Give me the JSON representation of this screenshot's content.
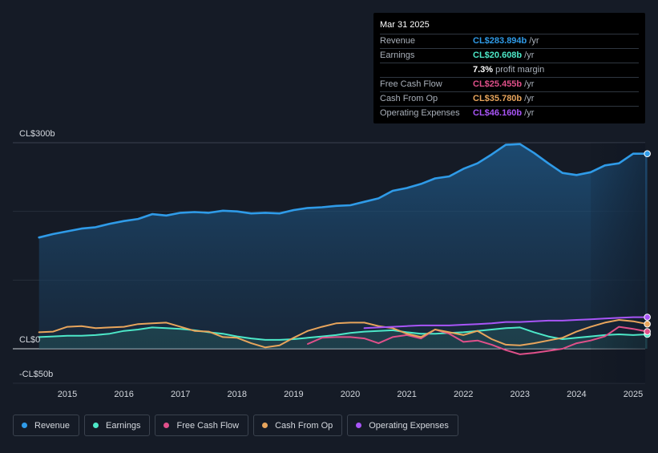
{
  "chart_data": {
    "type": "area",
    "y_axis": {
      "labels": {
        "top": "CL$300b",
        "zero": "CL$0",
        "bottom": "-CL$50b"
      },
      "ylim": [
        -50,
        300
      ]
    },
    "x_ticks": [
      "2015",
      "2016",
      "2017",
      "2018",
      "2019",
      "2020",
      "2021",
      "2022",
      "2023",
      "2024",
      "2025"
    ],
    "x_range": [
      2014.5,
      2025.25
    ],
    "forecast_start": 2024.25,
    "series": [
      {
        "name": "Revenue",
        "color": "#2f9be8",
        "fill": true,
        "points": [
          [
            2014.5,
            162
          ],
          [
            2014.75,
            167
          ],
          [
            2015.0,
            171
          ],
          [
            2015.25,
            175
          ],
          [
            2015.5,
            177
          ],
          [
            2015.75,
            182
          ],
          [
            2016.0,
            186
          ],
          [
            2016.25,
            189
          ],
          [
            2016.5,
            196
          ],
          [
            2016.75,
            194
          ],
          [
            2017.0,
            198
          ],
          [
            2017.25,
            199
          ],
          [
            2017.5,
            198
          ],
          [
            2017.75,
            201
          ],
          [
            2018.0,
            200
          ],
          [
            2018.25,
            197
          ],
          [
            2018.5,
            198
          ],
          [
            2018.75,
            197
          ],
          [
            2019.0,
            202
          ],
          [
            2019.25,
            205
          ],
          [
            2019.5,
            206
          ],
          [
            2019.75,
            208
          ],
          [
            2020.0,
            209
          ],
          [
            2020.25,
            214
          ],
          [
            2020.5,
            219
          ],
          [
            2020.75,
            230
          ],
          [
            2021.0,
            234
          ],
          [
            2021.25,
            240
          ],
          [
            2021.5,
            248
          ],
          [
            2021.75,
            251
          ],
          [
            2022.0,
            262
          ],
          [
            2022.25,
            270
          ],
          [
            2022.5,
            283
          ],
          [
            2022.75,
            297
          ],
          [
            2023.0,
            298
          ],
          [
            2023.25,
            285
          ],
          [
            2023.5,
            270
          ],
          [
            2023.75,
            256
          ],
          [
            2024.0,
            253
          ],
          [
            2024.25,
            257
          ],
          [
            2024.5,
            267
          ],
          [
            2024.75,
            270
          ],
          [
            2025.0,
            284
          ],
          [
            2025.25,
            284
          ]
        ]
      },
      {
        "name": "Earnings",
        "color": "#4de8c8",
        "fill": true,
        "points": [
          [
            2014.5,
            17
          ],
          [
            2014.75,
            18
          ],
          [
            2015.0,
            19
          ],
          [
            2015.25,
            19
          ],
          [
            2015.5,
            20
          ],
          [
            2015.75,
            22
          ],
          [
            2016.0,
            26
          ],
          [
            2016.25,
            28
          ],
          [
            2016.5,
            31
          ],
          [
            2016.75,
            30
          ],
          [
            2017.0,
            29
          ],
          [
            2017.25,
            27
          ],
          [
            2017.5,
            24
          ],
          [
            2017.75,
            22
          ],
          [
            2018.0,
            18
          ],
          [
            2018.25,
            15
          ],
          [
            2018.5,
            13
          ],
          [
            2018.75,
            13
          ],
          [
            2019.0,
            14
          ],
          [
            2019.25,
            16
          ],
          [
            2019.5,
            18
          ],
          [
            2019.75,
            20
          ],
          [
            2020.0,
            23
          ],
          [
            2020.25,
            25
          ],
          [
            2020.5,
            26
          ],
          [
            2020.75,
            27
          ],
          [
            2021.0,
            24
          ],
          [
            2021.25,
            22
          ],
          [
            2021.5,
            22
          ],
          [
            2021.75,
            23
          ],
          [
            2022.0,
            24
          ],
          [
            2022.25,
            26
          ],
          [
            2022.5,
            28
          ],
          [
            2022.75,
            30
          ],
          [
            2023.0,
            31
          ],
          [
            2023.25,
            24
          ],
          [
            2023.5,
            18
          ],
          [
            2023.75,
            14
          ],
          [
            2024.0,
            16
          ],
          [
            2024.25,
            18
          ],
          [
            2024.5,
            20
          ],
          [
            2024.75,
            21
          ],
          [
            2025.0,
            20
          ],
          [
            2025.25,
            21
          ]
        ]
      },
      {
        "name": "Free Cash Flow",
        "color": "#e0508a",
        "fill": false,
        "points": [
          [
            2019.25,
            7
          ],
          [
            2019.5,
            16
          ],
          [
            2019.75,
            17
          ],
          [
            2020.0,
            17
          ],
          [
            2020.25,
            15
          ],
          [
            2020.5,
            8
          ],
          [
            2020.75,
            17
          ],
          [
            2021.0,
            20
          ],
          [
            2021.25,
            15
          ],
          [
            2021.5,
            28
          ],
          [
            2021.75,
            22
          ],
          [
            2022.0,
            10
          ],
          [
            2022.25,
            12
          ],
          [
            2022.5,
            6
          ],
          [
            2022.75,
            -2
          ],
          [
            2023.0,
            -8
          ],
          [
            2023.25,
            -6
          ],
          [
            2023.5,
            -3
          ],
          [
            2023.75,
            0
          ],
          [
            2024.0,
            8
          ],
          [
            2024.25,
            12
          ],
          [
            2024.5,
            18
          ],
          [
            2024.75,
            32
          ],
          [
            2025.0,
            29
          ],
          [
            2025.25,
            25
          ]
        ]
      },
      {
        "name": "Cash From Op",
        "color": "#e8a55c",
        "fill": false,
        "points": [
          [
            2014.5,
            24
          ],
          [
            2014.75,
            25
          ],
          [
            2015.0,
            32
          ],
          [
            2015.25,
            33
          ],
          [
            2015.5,
            30
          ],
          [
            2015.75,
            31
          ],
          [
            2016.0,
            32
          ],
          [
            2016.25,
            36
          ],
          [
            2016.5,
            37
          ],
          [
            2016.75,
            38
          ],
          [
            2017.0,
            32
          ],
          [
            2017.25,
            26
          ],
          [
            2017.5,
            25
          ],
          [
            2017.75,
            17
          ],
          [
            2018.0,
            16
          ],
          [
            2018.25,
            8
          ],
          [
            2018.5,
            2
          ],
          [
            2018.75,
            5
          ],
          [
            2019.0,
            16
          ],
          [
            2019.25,
            26
          ],
          [
            2019.5,
            32
          ],
          [
            2019.75,
            37
          ],
          [
            2020.0,
            38
          ],
          [
            2020.25,
            38
          ],
          [
            2020.5,
            33
          ],
          [
            2020.75,
            30
          ],
          [
            2021.0,
            22
          ],
          [
            2021.25,
            17
          ],
          [
            2021.5,
            28
          ],
          [
            2021.75,
            24
          ],
          [
            2022.0,
            20
          ],
          [
            2022.25,
            26
          ],
          [
            2022.5,
            14
          ],
          [
            2022.75,
            6
          ],
          [
            2023.0,
            5
          ],
          [
            2023.25,
            8
          ],
          [
            2023.5,
            12
          ],
          [
            2023.75,
            16
          ],
          [
            2024.0,
            25
          ],
          [
            2024.25,
            32
          ],
          [
            2024.5,
            38
          ],
          [
            2024.75,
            42
          ],
          [
            2025.0,
            40
          ],
          [
            2025.25,
            36
          ]
        ]
      },
      {
        "name": "Operating Expenses",
        "color": "#a855f7",
        "fill": false,
        "points": [
          [
            2020.25,
            30
          ],
          [
            2020.5,
            31
          ],
          [
            2020.75,
            32
          ],
          [
            2021.0,
            33
          ],
          [
            2021.25,
            34
          ],
          [
            2021.5,
            34
          ],
          [
            2021.75,
            34
          ],
          [
            2022.0,
            35
          ],
          [
            2022.25,
            36
          ],
          [
            2022.5,
            37
          ],
          [
            2022.75,
            39
          ],
          [
            2023.0,
            39
          ],
          [
            2023.25,
            40
          ],
          [
            2023.5,
            41
          ],
          [
            2023.75,
            41
          ],
          [
            2024.0,
            42
          ],
          [
            2024.25,
            43
          ],
          [
            2024.5,
            44
          ],
          [
            2024.75,
            45
          ],
          [
            2025.0,
            46
          ],
          [
            2025.25,
            46
          ]
        ]
      }
    ]
  },
  "tooltip": {
    "date": "Mar 31 2025",
    "rows": [
      {
        "label": "Revenue",
        "value": "CL$283.894b",
        "unit": "/yr",
        "color": "#2f9be8"
      },
      {
        "label": "Earnings",
        "value": "CL$20.608b",
        "unit": "/yr",
        "color": "#4de8c8"
      },
      {
        "label": "",
        "value": "7.3%",
        "unit": "profit margin",
        "color": "#ffffff"
      },
      {
        "label": "Free Cash Flow",
        "value": "CL$25.455b",
        "unit": "/yr",
        "color": "#e0508a"
      },
      {
        "label": "Cash From Op",
        "value": "CL$35.780b",
        "unit": "/yr",
        "color": "#e8a55c"
      },
      {
        "label": "Operating Expenses",
        "value": "CL$46.160b",
        "unit": "/yr",
        "color": "#a855f7"
      }
    ]
  },
  "legend": [
    {
      "label": "Revenue",
      "color": "#2f9be8"
    },
    {
      "label": "Earnings",
      "color": "#4de8c8"
    },
    {
      "label": "Free Cash Flow",
      "color": "#e0508a"
    },
    {
      "label": "Cash From Op",
      "color": "#e8a55c"
    },
    {
      "label": "Operating Expenses",
      "color": "#a855f7"
    }
  ]
}
